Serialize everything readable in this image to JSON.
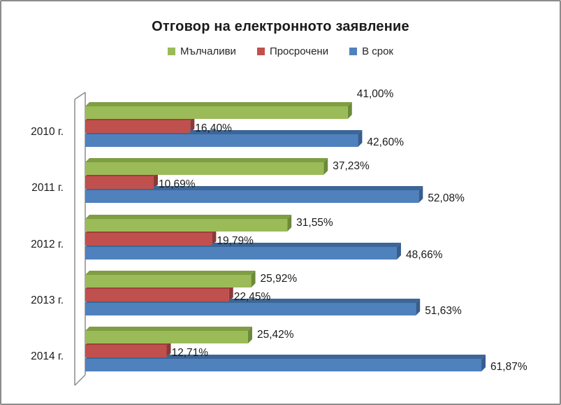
{
  "frame": {
    "background": "#FFFFFF",
    "border_color": "#8C8C8C"
  },
  "chart_data": {
    "type": "bar",
    "orientation": "horizontal",
    "effect_3d": true,
    "title": "Отговор на електронното заявление",
    "categories": [
      "2010 г.",
      "2011 г.",
      "2012 г.",
      "2013 г.",
      "2014 г."
    ],
    "series": [
      {
        "name": "Мълчаливи",
        "color": "#9BBB59",
        "color_top": "#7F9E43",
        "color_side": "#6C8A38",
        "values": [
          41.0,
          37.23,
          31.55,
          25.92,
          25.42
        ],
        "labels": [
          "41,00%",
          "37,23%",
          "31,55%",
          "25,92%",
          "25,42%"
        ]
      },
      {
        "name": "Просрочени",
        "color": "#C0504D",
        "color_top": "#A03F3C",
        "color_side": "#8C3836",
        "values": [
          16.4,
          10.69,
          19.79,
          22.45,
          12.71
        ],
        "labels": [
          "16,40%",
          "10,69%",
          "19,79%",
          "22,45%",
          "12,71%"
        ]
      },
      {
        "name": "В срок",
        "color": "#4F81BD",
        "color_top": "#3C6697",
        "color_side": "#365E8E",
        "values": [
          42.6,
          52.08,
          48.66,
          51.63,
          61.87
        ],
        "labels": [
          "42,60%",
          "52,08%",
          "48,66%",
          "51,63%",
          "61,87%"
        ]
      }
    ],
    "value_axis": {
      "min": 0,
      "max": 70,
      "tick_labels_visible": false
    },
    "gridlines": false,
    "legend_position": "top",
    "data_labels": "outside-end",
    "value_format": "0,00%",
    "label_color": "#1A1A1A",
    "wall_color": "#8C8C8C"
  }
}
